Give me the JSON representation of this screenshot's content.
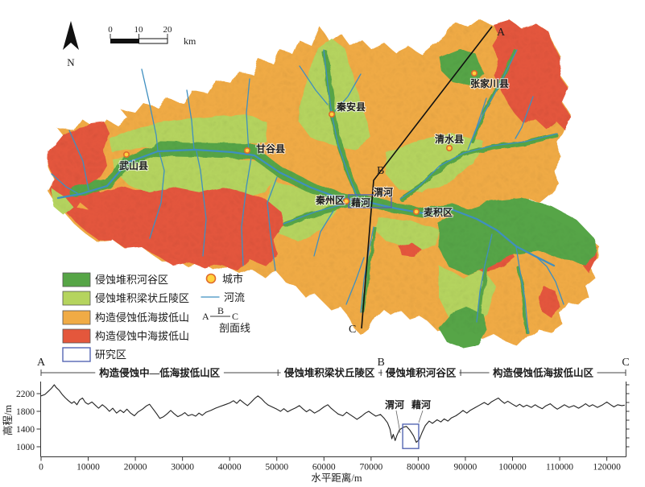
{
  "colors": {
    "valley_green": "#56a546",
    "hill_light_green": "#b5d45e",
    "low_mountain_orange": "#f0ab45",
    "mid_mountain_red": "#e4573c",
    "river_blue": "#3f8fc0",
    "study_area_blue": "#5566b3",
    "city_fill": "#ffd23e",
    "city_ring": "#e06a2b",
    "white": "#ffffff"
  },
  "map": {
    "north_label": "N",
    "scale_bar": {
      "tick0": "0",
      "tick1": "10",
      "tick2": "20",
      "unit": "km"
    },
    "cities": [
      {
        "name": "武山县"
      },
      {
        "name": "甘谷县"
      },
      {
        "name": "秦安县"
      },
      {
        "name": "清水县"
      },
      {
        "name": "张家川县"
      },
      {
        "name": "秦州区"
      },
      {
        "name": "麦积区"
      }
    ],
    "river_labels": [
      {
        "name": "渭河"
      },
      {
        "name": "藉河"
      }
    ],
    "profile_markers": {
      "a": "A",
      "b": "B",
      "c": "C"
    }
  },
  "legend": {
    "area_items": [
      {
        "label": "侵蚀堆积河谷区",
        "color": "#56a546"
      },
      {
        "label": "侵蚀堆积梁状丘陵区",
        "color": "#b5d45e"
      },
      {
        "label": "构造侵蚀低海拔低山",
        "color": "#f0ab45"
      },
      {
        "label": "构造侵蚀中海拔低山",
        "color": "#e4573c"
      },
      {
        "label": "研究区",
        "color": "#ffffff"
      }
    ],
    "city_label": "城市",
    "river_label": "河流",
    "profile_label": "剖面线",
    "profile_a": "A",
    "profile_b": "B",
    "profile_c": "C"
  },
  "chart_data": {
    "type": "line",
    "xlabel": "水平距离/m",
    "ylabel": "高程/m",
    "xlim": [
      0,
      124000
    ],
    "ylim": [
      800,
      2600
    ],
    "x_ticks": [
      0,
      10000,
      20000,
      30000,
      40000,
      50000,
      60000,
      70000,
      80000,
      90000,
      100000,
      110000,
      120000
    ],
    "y_ticks": [
      1000,
      1400,
      1800,
      2200
    ],
    "grid": false,
    "segments": [
      {
        "label": "构造侵蚀中—低海拔低山区",
        "from": 0,
        "to": 50250
      },
      {
        "label": "侵蚀堆积梁状丘陵区",
        "from": 50250,
        "to": 72100
      },
      {
        "label": "侵蚀堆积河谷区",
        "from": 72100,
        "to": 89000
      },
      {
        "label": "构造侵蚀低海拔低山区",
        "from": 89000,
        "to": 124000
      }
    ],
    "markers": [
      {
        "label": "A",
        "x": 0
      },
      {
        "label": "B",
        "x": 72100
      },
      {
        "label": "C",
        "x": 124000
      }
    ],
    "annotations": [
      {
        "label": "渭河",
        "x": 75100
      },
      {
        "label": "藉河",
        "x": 79600
      }
    ],
    "study_box": {
      "x_from": 76700,
      "x_to": 80100,
      "elev_top": 1510,
      "elev_bottom": 960
    },
    "series": [
      {
        "name": "剖面线",
        "points": [
          [
            0,
            2150
          ],
          [
            800,
            2180
          ],
          [
            1500,
            2250
          ],
          [
            2200,
            2320
          ],
          [
            2800,
            2400
          ],
          [
            3200,
            2340
          ],
          [
            3800,
            2280
          ],
          [
            4500,
            2180
          ],
          [
            5200,
            2100
          ],
          [
            5800,
            2040
          ],
          [
            6500,
            1980
          ],
          [
            7000,
            2020
          ],
          [
            7600,
            1950
          ],
          [
            8200,
            2060
          ],
          [
            8800,
            2100
          ],
          [
            9400,
            2000
          ],
          [
            10000,
            1960
          ],
          [
            10800,
            2010
          ],
          [
            11500,
            1940
          ],
          [
            12200,
            1870
          ],
          [
            13000,
            1950
          ],
          [
            13800,
            1880
          ],
          [
            14500,
            1800
          ],
          [
            15200,
            1870
          ],
          [
            16000,
            1760
          ],
          [
            16800,
            1830
          ],
          [
            17500,
            1770
          ],
          [
            18200,
            1850
          ],
          [
            19000,
            1760
          ],
          [
            19800,
            1700
          ],
          [
            20500,
            1780
          ],
          [
            21500,
            1850
          ],
          [
            22300,
            1920
          ],
          [
            23000,
            1960
          ],
          [
            23800,
            1850
          ],
          [
            24500,
            1750
          ],
          [
            25200,
            1640
          ],
          [
            26000,
            1680
          ],
          [
            26800,
            1750
          ],
          [
            27500,
            1820
          ],
          [
            28200,
            1750
          ],
          [
            29000,
            1680
          ],
          [
            29800,
            1720
          ],
          [
            30500,
            1770
          ],
          [
            31200,
            1700
          ],
          [
            32000,
            1730
          ],
          [
            32800,
            1690
          ],
          [
            33500,
            1760
          ],
          [
            34200,
            1710
          ],
          [
            35000,
            1780
          ],
          [
            36000,
            1820
          ],
          [
            37000,
            1870
          ],
          [
            38000,
            1910
          ],
          [
            39000,
            1950
          ],
          [
            40000,
            1990
          ],
          [
            40800,
            2040
          ],
          [
            41500,
            1980
          ],
          [
            42200,
            2060
          ],
          [
            43000,
            1990
          ],
          [
            43800,
            1930
          ],
          [
            44500,
            2000
          ],
          [
            45300,
            2090
          ],
          [
            46000,
            2150
          ],
          [
            46800,
            2080
          ],
          [
            47500,
            2000
          ],
          [
            48200,
            1940
          ],
          [
            49000,
            1900
          ],
          [
            50000,
            1850
          ],
          [
            50800,
            1800
          ],
          [
            51500,
            1860
          ],
          [
            52300,
            1790
          ],
          [
            53000,
            1830
          ],
          [
            54000,
            1880
          ],
          [
            54800,
            1930
          ],
          [
            55500,
            1860
          ],
          [
            56300,
            1790
          ],
          [
            57000,
            1840
          ],
          [
            58000,
            1760
          ],
          [
            59000,
            1820
          ],
          [
            60000,
            1900
          ],
          [
            60800,
            1950
          ],
          [
            61500,
            1870
          ],
          [
            62300,
            1800
          ],
          [
            63000,
            1740
          ],
          [
            64000,
            1700
          ],
          [
            64800,
            1780
          ],
          [
            65500,
            1730
          ],
          [
            66300,
            1670
          ],
          [
            67000,
            1620
          ],
          [
            68000,
            1690
          ],
          [
            68800,
            1760
          ],
          [
            69500,
            1800
          ],
          [
            70300,
            1740
          ],
          [
            71000,
            1690
          ],
          [
            72000,
            1730
          ],
          [
            72800,
            1640
          ],
          [
            73500,
            1540
          ],
          [
            74000,
            1400
          ],
          [
            74400,
            1180
          ],
          [
            74700,
            1280
          ],
          [
            75100,
            1140
          ],
          [
            75500,
            1260
          ],
          [
            76000,
            1380
          ],
          [
            76800,
            1440
          ],
          [
            77500,
            1460
          ],
          [
            78200,
            1380
          ],
          [
            79000,
            1250
          ],
          [
            79600,
            1100
          ],
          [
            80200,
            1160
          ],
          [
            80800,
            1320
          ],
          [
            81500,
            1480
          ],
          [
            82300,
            1580
          ],
          [
            83000,
            1530
          ],
          [
            84000,
            1610
          ],
          [
            84800,
            1560
          ],
          [
            85500,
            1630
          ],
          [
            86300,
            1580
          ],
          [
            87000,
            1650
          ],
          [
            88000,
            1700
          ],
          [
            88800,
            1760
          ],
          [
            89500,
            1820
          ],
          [
            90300,
            1760
          ],
          [
            91000,
            1820
          ],
          [
            92000,
            1880
          ],
          [
            93000,
            1940
          ],
          [
            94000,
            2000
          ],
          [
            94800,
            1950
          ],
          [
            95500,
            2010
          ],
          [
            96300,
            2060
          ],
          [
            97000,
            2100
          ],
          [
            97600,
            2040
          ],
          [
            98300,
            1980
          ],
          [
            99000,
            2030
          ],
          [
            100000,
            1960
          ],
          [
            100800,
            1910
          ],
          [
            101500,
            1960
          ],
          [
            102300,
            1900
          ],
          [
            103000,
            1940
          ],
          [
            104000,
            1890
          ],
          [
            104800,
            1950
          ],
          [
            105500,
            1900
          ],
          [
            106300,
            1860
          ],
          [
            107000,
            1920
          ],
          [
            108000,
            1970
          ],
          [
            108800,
            1900
          ],
          [
            109500,
            1850
          ],
          [
            110300,
            1900
          ],
          [
            111000,
            1950
          ],
          [
            112000,
            1890
          ],
          [
            113000,
            1930
          ],
          [
            114000,
            1870
          ],
          [
            114800,
            1920
          ],
          [
            115500,
            1970
          ],
          [
            116300,
            1910
          ],
          [
            117000,
            1950
          ],
          [
            118000,
            1890
          ],
          [
            119000,
            1940
          ],
          [
            120000,
            2010
          ],
          [
            120800,
            1950
          ],
          [
            121500,
            1900
          ],
          [
            122300,
            1950
          ],
          [
            123200,
            1930
          ],
          [
            123800,
            1940
          ]
        ]
      }
    ]
  }
}
